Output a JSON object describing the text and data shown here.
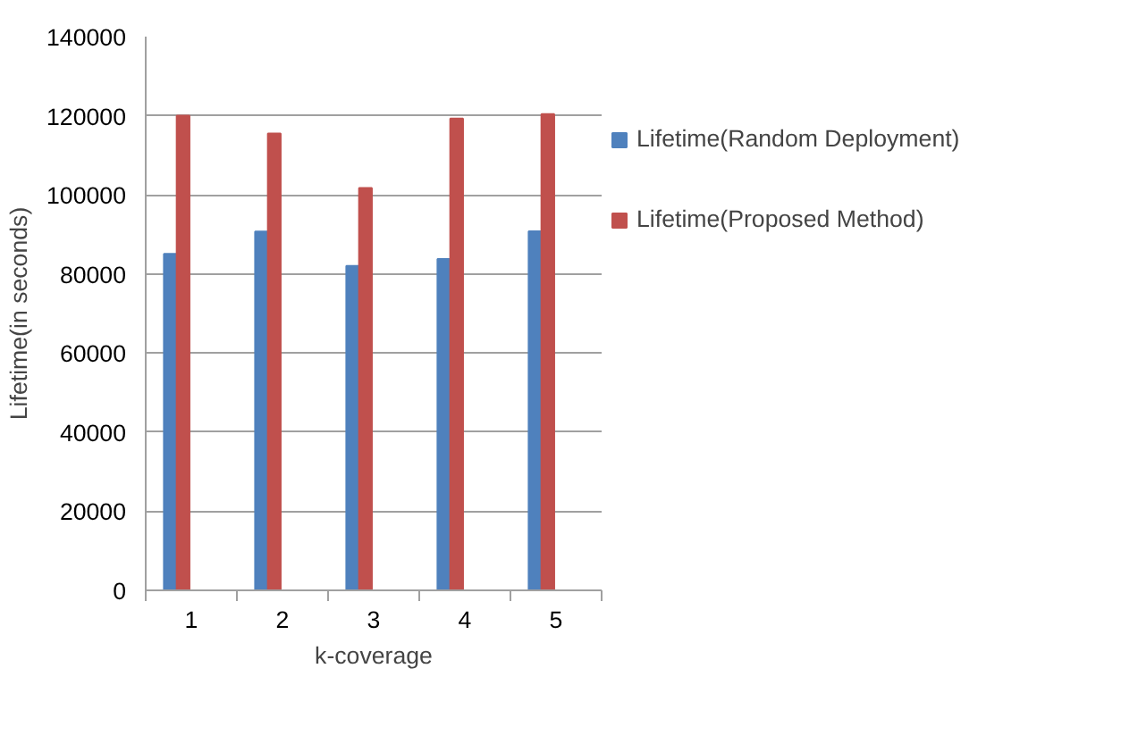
{
  "chart_data": {
    "type": "bar",
    "xlabel": "k-coverage",
    "ylabel": "Lifetime(in seconds)",
    "categories": [
      "1",
      "2",
      "3",
      "4",
      "5"
    ],
    "series": [
      {
        "name": "Lifetime(Random Deployment)",
        "color": "#4f81bd",
        "values": [
          85100,
          90700,
          82000,
          83800,
          90800
        ]
      },
      {
        "name": "Lifetime(Proposed Method)",
        "color": "#c0504d",
        "values": [
          120000,
          115500,
          101700,
          119300,
          120400
        ]
      }
    ],
    "ylim": [
      0,
      140000
    ],
    "yticks": [
      0,
      20000,
      40000,
      60000,
      80000,
      100000,
      120000,
      140000
    ],
    "grid": "y",
    "legend": "right"
  }
}
